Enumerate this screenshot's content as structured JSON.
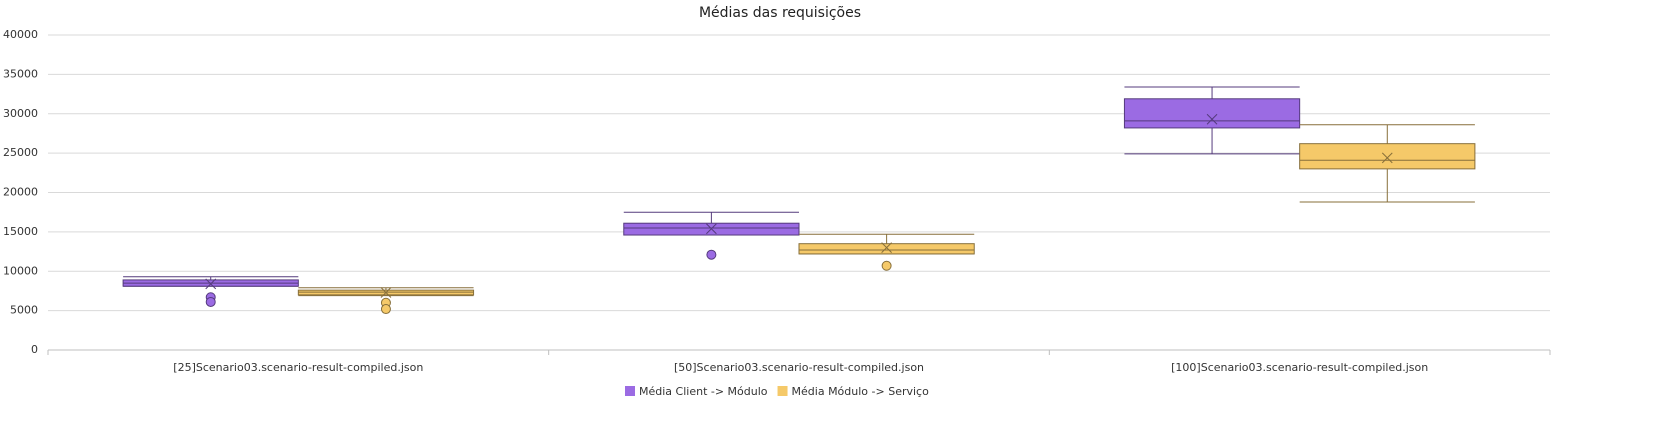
{
  "chart_data": {
    "type": "boxplot",
    "title": "Médias das requisições",
    "categories": [
      "[25]Scenario03.scenario-result-compiled.json",
      "[50]Scenario03.scenario-result-compiled.json",
      "[100]Scenario03.scenario-result-compiled.json"
    ],
    "ylim": [
      0,
      40000
    ],
    "yticks": [
      0,
      5000,
      10000,
      15000,
      20000,
      25000,
      30000,
      35000,
      40000
    ],
    "grid": true,
    "series": [
      {
        "name": "Média Client -> Módulo",
        "color": "#9b6be3",
        "boxes": [
          {
            "min": 8100,
            "q1": 8100,
            "median": 8500,
            "q3": 8900,
            "max": 9300,
            "mean": 8400,
            "outliers": [
              6700,
              6100
            ]
          },
          {
            "min": 14600,
            "q1": 14600,
            "median": 15500,
            "q3": 16100,
            "max": 17500,
            "mean": 15400,
            "outliers": [
              12100
            ]
          },
          {
            "min": 24900,
            "q1": 28200,
            "median": 29100,
            "q3": 31900,
            "max": 33400,
            "mean": 29300,
            "outliers": []
          }
        ]
      },
      {
        "name": "Média Módulo -> Serviço",
        "color": "#f5c969",
        "boxes": [
          {
            "min": 6900,
            "q1": 7000,
            "median": 7350,
            "q3": 7600,
            "max": 7900,
            "mean": 7300,
            "outliers": [
              6000,
              5200
            ]
          },
          {
            "min": 12200,
            "q1": 12200,
            "median": 12700,
            "q3": 13500,
            "max": 14700,
            "mean": 13000,
            "outliers": [
              10700
            ]
          },
          {
            "min": 18800,
            "q1": 23000,
            "median": 24100,
            "q3": 26200,
            "max": 28600,
            "mean": 24400,
            "outliers": []
          }
        ]
      }
    ]
  }
}
